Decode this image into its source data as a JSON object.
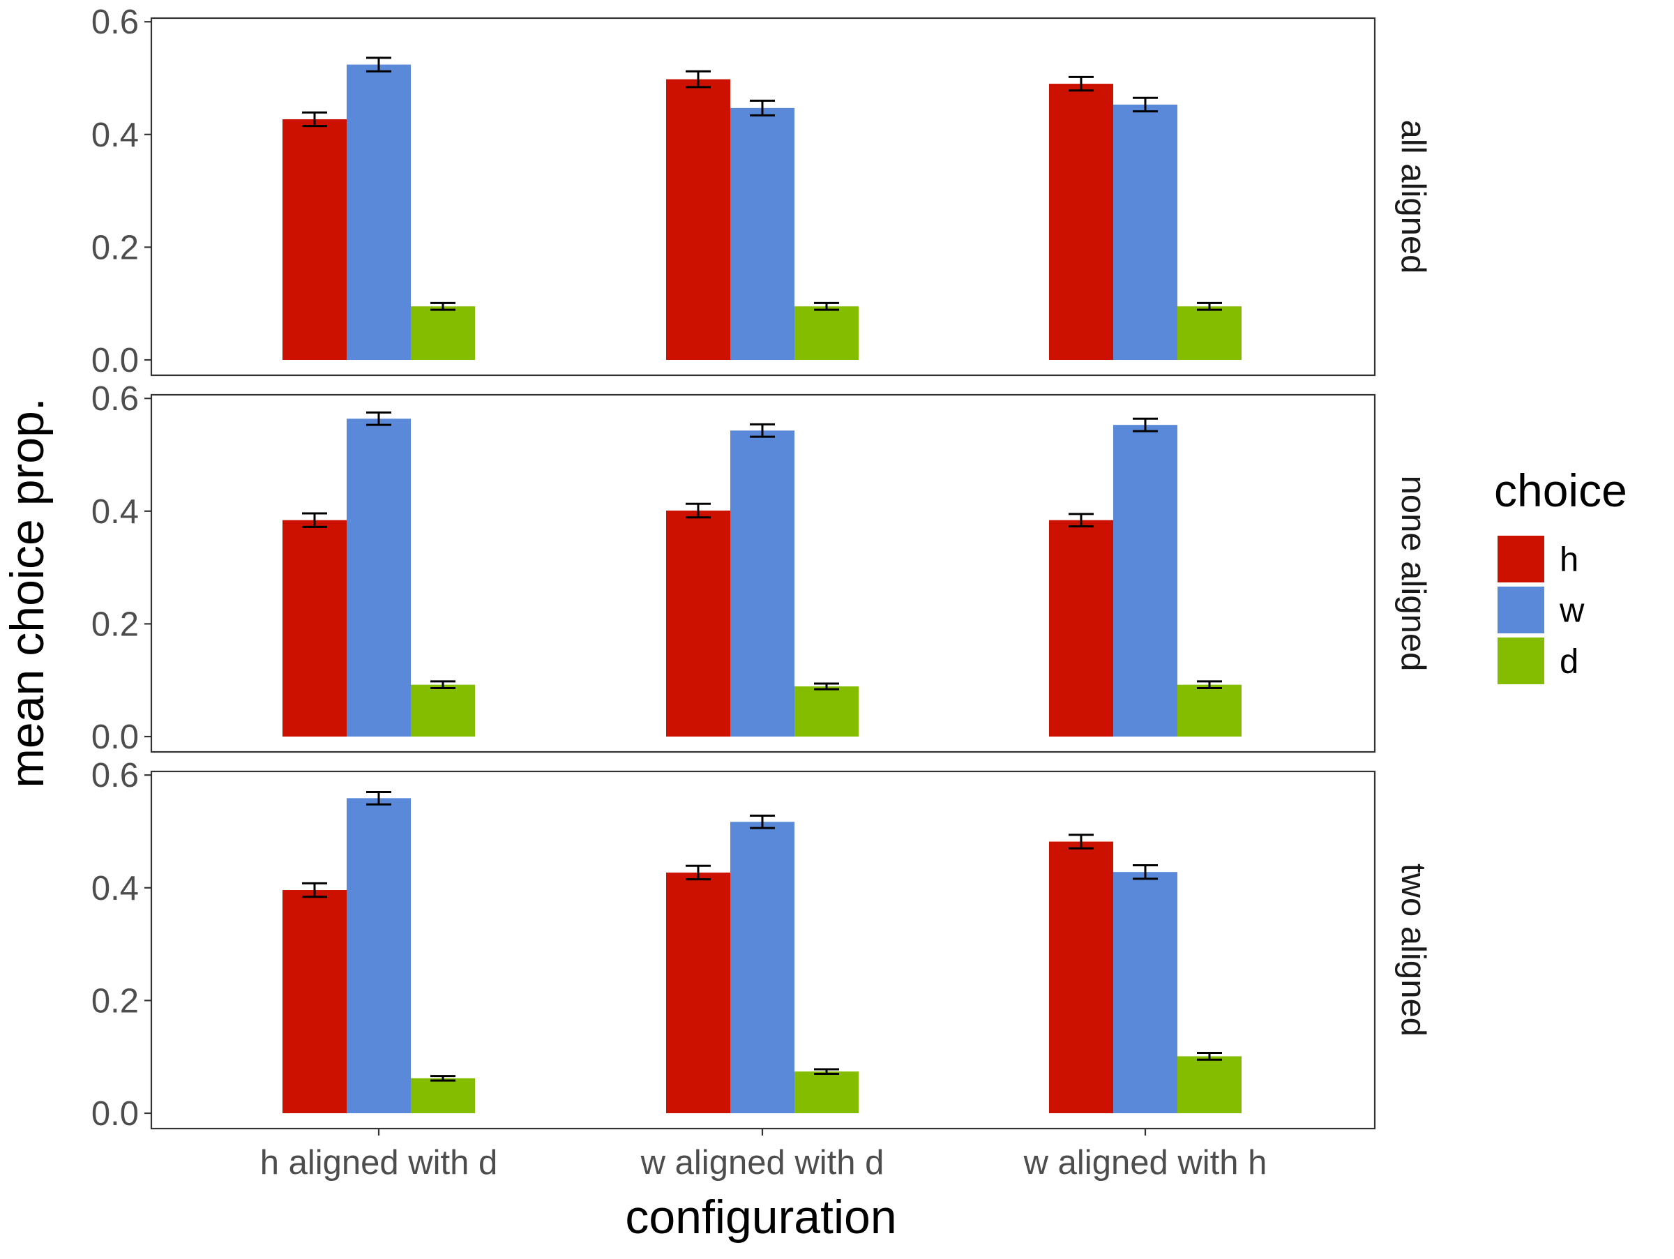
{
  "chart_data": {
    "type": "bar",
    "facet_by": "rows",
    "xlabel": "configuration",
    "ylabel": "mean choice prop.",
    "ylim": [
      0,
      0.6
    ],
    "yticks": [
      "0.0",
      "0.2",
      "0.4",
      "0.6"
    ],
    "categories": [
      "h aligned with d",
      "w aligned with d",
      "w aligned with h"
    ],
    "legend": {
      "title": "choice",
      "position": "right",
      "items": [
        {
          "name": "h",
          "color": "#CC1100"
        },
        {
          "name": "w",
          "color": "#5B89D9"
        },
        {
          "name": "d",
          "color": "#84BC00"
        }
      ]
    },
    "grid": false,
    "panels": [
      {
        "label": "all aligned",
        "series": [
          {
            "name": "h",
            "values": [
              0.427,
              0.498,
              0.49
            ],
            "errors": [
              0.012,
              0.014,
              0.012
            ]
          },
          {
            "name": "w",
            "values": [
              0.524,
              0.447,
              0.453
            ],
            "errors": [
              0.012,
              0.013,
              0.012
            ]
          },
          {
            "name": "d",
            "values": [
              0.095,
              0.095,
              0.095
            ],
            "errors": [
              0.006,
              0.006,
              0.006
            ]
          }
        ]
      },
      {
        "label": "none aligned",
        "series": [
          {
            "name": "h",
            "values": [
              0.384,
              0.401,
              0.384
            ],
            "errors": [
              0.012,
              0.012,
              0.011
            ]
          },
          {
            "name": "w",
            "values": [
              0.564,
              0.543,
              0.553
            ],
            "errors": [
              0.011,
              0.011,
              0.011
            ]
          },
          {
            "name": "d",
            "values": [
              0.092,
              0.089,
              0.092
            ],
            "errors": [
              0.006,
              0.005,
              0.006
            ]
          }
        ]
      },
      {
        "label": "two aligned",
        "series": [
          {
            "name": "h",
            "values": [
              0.396,
              0.427,
              0.482
            ],
            "errors": [
              0.012,
              0.012,
              0.012
            ]
          },
          {
            "name": "w",
            "values": [
              0.559,
              0.517,
              0.428
            ],
            "errors": [
              0.011,
              0.011,
              0.012
            ]
          },
          {
            "name": "d",
            "values": [
              0.062,
              0.074,
              0.101
            ],
            "errors": [
              0.004,
              0.004,
              0.006
            ]
          }
        ]
      }
    ]
  }
}
